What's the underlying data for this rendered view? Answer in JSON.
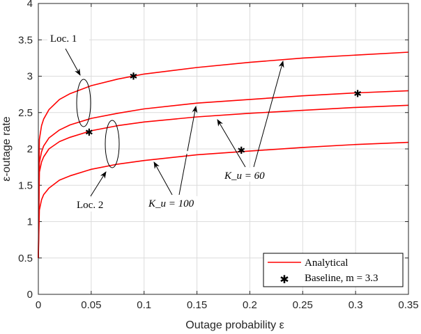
{
  "chart_data": {
    "type": "line",
    "xlabel": "Outage probability ε",
    "ylabel": "ε-outage rate",
    "xlim": [
      0,
      0.35
    ],
    "ylim": [
      0,
      4
    ],
    "grid": true,
    "xticks": [
      "0",
      "0.05",
      "0.1",
      "0.15",
      "0.2",
      "0.25",
      "0.3",
      "0.35"
    ],
    "xtick_values": [
      0,
      0.05,
      0.1,
      0.15,
      0.2,
      0.25,
      0.3,
      0.35
    ],
    "yticks": [
      "0",
      "0.5",
      "1",
      "1.5",
      "2",
      "2.5",
      "3",
      "3.5",
      "4"
    ],
    "ytick_values": [
      0,
      0.5,
      1,
      1.5,
      2,
      2.5,
      3,
      3.5,
      4
    ],
    "x": [
      0,
      0.001,
      0.003,
      0.005,
      0.01,
      0.02,
      0.03,
      0.05,
      0.075,
      0.1,
      0.15,
      0.2,
      0.25,
      0.3,
      0.35
    ],
    "series": [
      {
        "name": "Analytical (Loc. 1, K_u = 60)",
        "values": [
          0.5,
          2.13,
          2.32,
          2.41,
          2.54,
          2.68,
          2.76,
          2.87,
          2.96,
          3.03,
          3.12,
          3.19,
          3.25,
          3.29,
          3.33
        ]
      },
      {
        "name": "Analytical (Loc. 1, K_u = 100)",
        "values": [
          0.5,
          1.81,
          1.96,
          2.04,
          2.15,
          2.26,
          2.33,
          2.42,
          2.49,
          2.55,
          2.63,
          2.68,
          2.73,
          2.77,
          2.8
        ]
      },
      {
        "name": "Analytical (Loc. 2, K_u = 60)",
        "values": [
          0.5,
          1.68,
          1.82,
          1.89,
          2.0,
          2.1,
          2.16,
          2.25,
          2.32,
          2.37,
          2.44,
          2.49,
          2.53,
          2.57,
          2.6
        ]
      },
      {
        "name": "Analytical (Loc. 2, K_u = 100)",
        "values": [
          0.5,
          1.16,
          1.3,
          1.37,
          1.46,
          1.57,
          1.63,
          1.72,
          1.79,
          1.84,
          1.92,
          1.97,
          2.02,
          2.06,
          2.09
        ]
      }
    ],
    "baseline_points": [
      {
        "x": 0.09,
        "y": 3.0
      },
      {
        "x": 0.048,
        "y": 2.23
      },
      {
        "x": 0.192,
        "y": 1.98
      },
      {
        "x": 0.302,
        "y": 2.76
      }
    ],
    "legend": {
      "placement": "bottom-right",
      "entries": [
        "Analytical",
        "Baseline, m = 3.3"
      ]
    },
    "annotations": {
      "loc1": "Loc. 1",
      "loc2": "Loc. 2",
      "ku100": "K_u = 100",
      "ku60": "K_u = 60"
    },
    "colors": {
      "analytical": "#ff0000",
      "baseline": "#000000",
      "grid": "#dcdcdc",
      "axis": "#262626"
    }
  }
}
